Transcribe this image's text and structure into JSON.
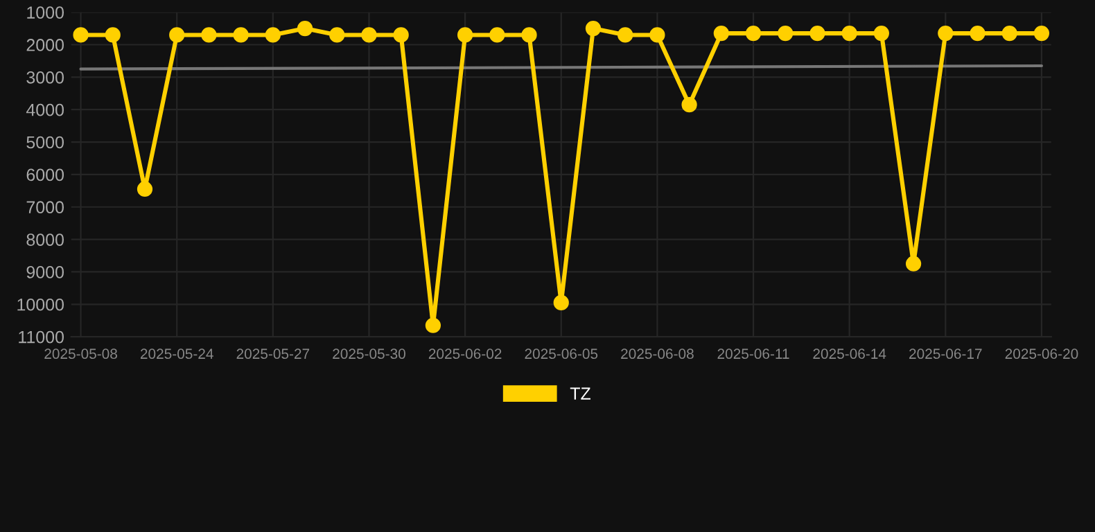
{
  "chart_data": {
    "type": "line",
    "categories": [
      "2025-05-08",
      null,
      null,
      "2025-05-24",
      null,
      null,
      "2025-05-27",
      null,
      null,
      "2025-05-30",
      null,
      null,
      "2025-06-02",
      null,
      null,
      "2025-06-05",
      null,
      null,
      "2025-06-08",
      null,
      null,
      "2025-06-11",
      null,
      null,
      "2025-06-14",
      null,
      null,
      "2025-06-17",
      null,
      null,
      "2025-06-20"
    ],
    "series": [
      {
        "name": "TZ",
        "color": "#ffd000",
        "marker": "circle",
        "values": [
          1700,
          1700,
          6450,
          1700,
          1700,
          1700,
          1700,
          1500,
          1700,
          1700,
          1700,
          10650,
          1700,
          1700,
          1700,
          9950,
          1500,
          1700,
          1700,
          3850,
          1650,
          1650,
          1650,
          1650,
          1650,
          1650,
          8750,
          1650,
          1650,
          1650,
          1650
        ]
      },
      {
        "color": "#777777",
        "marker": "none",
        "values": [
          2750,
          null,
          null,
          null,
          null,
          null,
          null,
          null,
          null,
          null,
          null,
          null,
          null,
          null,
          null,
          null,
          null,
          null,
          null,
          null,
          null,
          null,
          null,
          null,
          null,
          null,
          null,
          null,
          null,
          null,
          2650
        ]
      }
    ],
    "ylim": [
      11000,
      1000
    ],
    "yticks": [
      1000,
      2000,
      3000,
      4000,
      5000,
      6000,
      7000,
      8000,
      9000,
      10000,
      11000
    ],
    "grid": true,
    "legend": "bottom"
  }
}
